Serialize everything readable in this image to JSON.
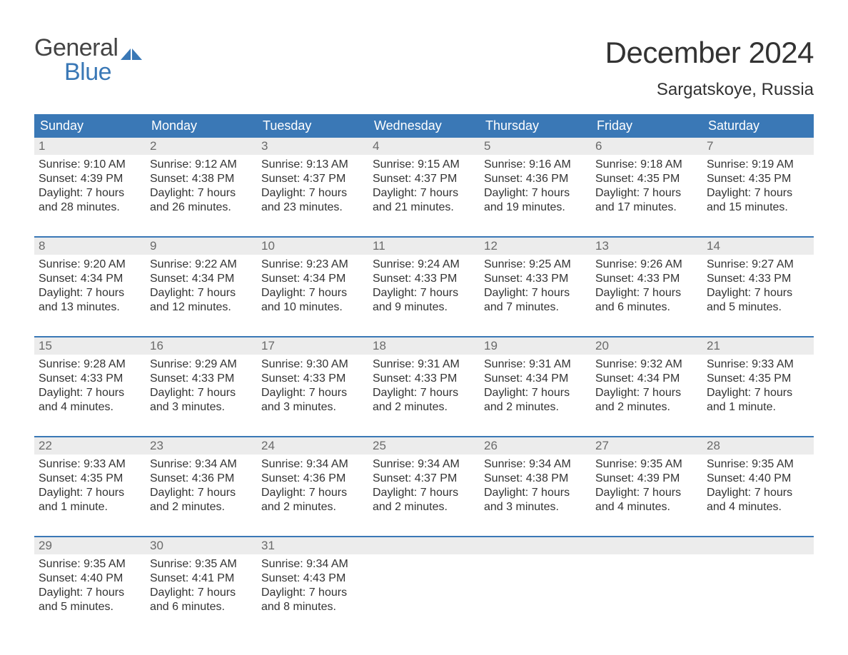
{
  "colors": {
    "accent": "#3a78b6",
    "header_bg": "#3a78b6",
    "header_text": "#ffffff",
    "daynum_bg": "#ececec",
    "daynum_text": "#6a6a6a",
    "body_text": "#333333",
    "logo_gray": "#444444",
    "logo_blue": "#3a78b6",
    "background": "#ffffff"
  },
  "logo": {
    "line1": "General",
    "line2": "Blue"
  },
  "title": "December 2024",
  "location": "Sargatskoye, Russia",
  "day_headers": [
    "Sunday",
    "Monday",
    "Tuesday",
    "Wednesday",
    "Thursday",
    "Friday",
    "Saturday"
  ],
  "weeks": [
    [
      {
        "n": "1",
        "sunrise": "Sunrise: 9:10 AM",
        "sunset": "Sunset: 4:39 PM",
        "dl1": "Daylight: 7 hours",
        "dl2": "and 28 minutes."
      },
      {
        "n": "2",
        "sunrise": "Sunrise: 9:12 AM",
        "sunset": "Sunset: 4:38 PM",
        "dl1": "Daylight: 7 hours",
        "dl2": "and 26 minutes."
      },
      {
        "n": "3",
        "sunrise": "Sunrise: 9:13 AM",
        "sunset": "Sunset: 4:37 PM",
        "dl1": "Daylight: 7 hours",
        "dl2": "and 23 minutes."
      },
      {
        "n": "4",
        "sunrise": "Sunrise: 9:15 AM",
        "sunset": "Sunset: 4:37 PM",
        "dl1": "Daylight: 7 hours",
        "dl2": "and 21 minutes."
      },
      {
        "n": "5",
        "sunrise": "Sunrise: 9:16 AM",
        "sunset": "Sunset: 4:36 PM",
        "dl1": "Daylight: 7 hours",
        "dl2": "and 19 minutes."
      },
      {
        "n": "6",
        "sunrise": "Sunrise: 9:18 AM",
        "sunset": "Sunset: 4:35 PM",
        "dl1": "Daylight: 7 hours",
        "dl2": "and 17 minutes."
      },
      {
        "n": "7",
        "sunrise": "Sunrise: 9:19 AM",
        "sunset": "Sunset: 4:35 PM",
        "dl1": "Daylight: 7 hours",
        "dl2": "and 15 minutes."
      }
    ],
    [
      {
        "n": "8",
        "sunrise": "Sunrise: 9:20 AM",
        "sunset": "Sunset: 4:34 PM",
        "dl1": "Daylight: 7 hours",
        "dl2": "and 13 minutes."
      },
      {
        "n": "9",
        "sunrise": "Sunrise: 9:22 AM",
        "sunset": "Sunset: 4:34 PM",
        "dl1": "Daylight: 7 hours",
        "dl2": "and 12 minutes."
      },
      {
        "n": "10",
        "sunrise": "Sunrise: 9:23 AM",
        "sunset": "Sunset: 4:34 PM",
        "dl1": "Daylight: 7 hours",
        "dl2": "and 10 minutes."
      },
      {
        "n": "11",
        "sunrise": "Sunrise: 9:24 AM",
        "sunset": "Sunset: 4:33 PM",
        "dl1": "Daylight: 7 hours",
        "dl2": "and 9 minutes."
      },
      {
        "n": "12",
        "sunrise": "Sunrise: 9:25 AM",
        "sunset": "Sunset: 4:33 PM",
        "dl1": "Daylight: 7 hours",
        "dl2": "and 7 minutes."
      },
      {
        "n": "13",
        "sunrise": "Sunrise: 9:26 AM",
        "sunset": "Sunset: 4:33 PM",
        "dl1": "Daylight: 7 hours",
        "dl2": "and 6 minutes."
      },
      {
        "n": "14",
        "sunrise": "Sunrise: 9:27 AM",
        "sunset": "Sunset: 4:33 PM",
        "dl1": "Daylight: 7 hours",
        "dl2": "and 5 minutes."
      }
    ],
    [
      {
        "n": "15",
        "sunrise": "Sunrise: 9:28 AM",
        "sunset": "Sunset: 4:33 PM",
        "dl1": "Daylight: 7 hours",
        "dl2": "and 4 minutes."
      },
      {
        "n": "16",
        "sunrise": "Sunrise: 9:29 AM",
        "sunset": "Sunset: 4:33 PM",
        "dl1": "Daylight: 7 hours",
        "dl2": "and 3 minutes."
      },
      {
        "n": "17",
        "sunrise": "Sunrise: 9:30 AM",
        "sunset": "Sunset: 4:33 PM",
        "dl1": "Daylight: 7 hours",
        "dl2": "and 3 minutes."
      },
      {
        "n": "18",
        "sunrise": "Sunrise: 9:31 AM",
        "sunset": "Sunset: 4:33 PM",
        "dl1": "Daylight: 7 hours",
        "dl2": "and 2 minutes."
      },
      {
        "n": "19",
        "sunrise": "Sunrise: 9:31 AM",
        "sunset": "Sunset: 4:34 PM",
        "dl1": "Daylight: 7 hours",
        "dl2": "and 2 minutes."
      },
      {
        "n": "20",
        "sunrise": "Sunrise: 9:32 AM",
        "sunset": "Sunset: 4:34 PM",
        "dl1": "Daylight: 7 hours",
        "dl2": "and 2 minutes."
      },
      {
        "n": "21",
        "sunrise": "Sunrise: 9:33 AM",
        "sunset": "Sunset: 4:35 PM",
        "dl1": "Daylight: 7 hours",
        "dl2": "and 1 minute."
      }
    ],
    [
      {
        "n": "22",
        "sunrise": "Sunrise: 9:33 AM",
        "sunset": "Sunset: 4:35 PM",
        "dl1": "Daylight: 7 hours",
        "dl2": "and 1 minute."
      },
      {
        "n": "23",
        "sunrise": "Sunrise: 9:34 AM",
        "sunset": "Sunset: 4:36 PM",
        "dl1": "Daylight: 7 hours",
        "dl2": "and 2 minutes."
      },
      {
        "n": "24",
        "sunrise": "Sunrise: 9:34 AM",
        "sunset": "Sunset: 4:36 PM",
        "dl1": "Daylight: 7 hours",
        "dl2": "and 2 minutes."
      },
      {
        "n": "25",
        "sunrise": "Sunrise: 9:34 AM",
        "sunset": "Sunset: 4:37 PM",
        "dl1": "Daylight: 7 hours",
        "dl2": "and 2 minutes."
      },
      {
        "n": "26",
        "sunrise": "Sunrise: 9:34 AM",
        "sunset": "Sunset: 4:38 PM",
        "dl1": "Daylight: 7 hours",
        "dl2": "and 3 minutes."
      },
      {
        "n": "27",
        "sunrise": "Sunrise: 9:35 AM",
        "sunset": "Sunset: 4:39 PM",
        "dl1": "Daylight: 7 hours",
        "dl2": "and 4 minutes."
      },
      {
        "n": "28",
        "sunrise": "Sunrise: 9:35 AM",
        "sunset": "Sunset: 4:40 PM",
        "dl1": "Daylight: 7 hours",
        "dl2": "and 4 minutes."
      }
    ],
    [
      {
        "n": "29",
        "sunrise": "Sunrise: 9:35 AM",
        "sunset": "Sunset: 4:40 PM",
        "dl1": "Daylight: 7 hours",
        "dl2": "and 5 minutes."
      },
      {
        "n": "30",
        "sunrise": "Sunrise: 9:35 AM",
        "sunset": "Sunset: 4:41 PM",
        "dl1": "Daylight: 7 hours",
        "dl2": "and 6 minutes."
      },
      {
        "n": "31",
        "sunrise": "Sunrise: 9:34 AM",
        "sunset": "Sunset: 4:43 PM",
        "dl1": "Daylight: 7 hours",
        "dl2": "and 8 minutes."
      },
      null,
      null,
      null,
      null
    ]
  ]
}
